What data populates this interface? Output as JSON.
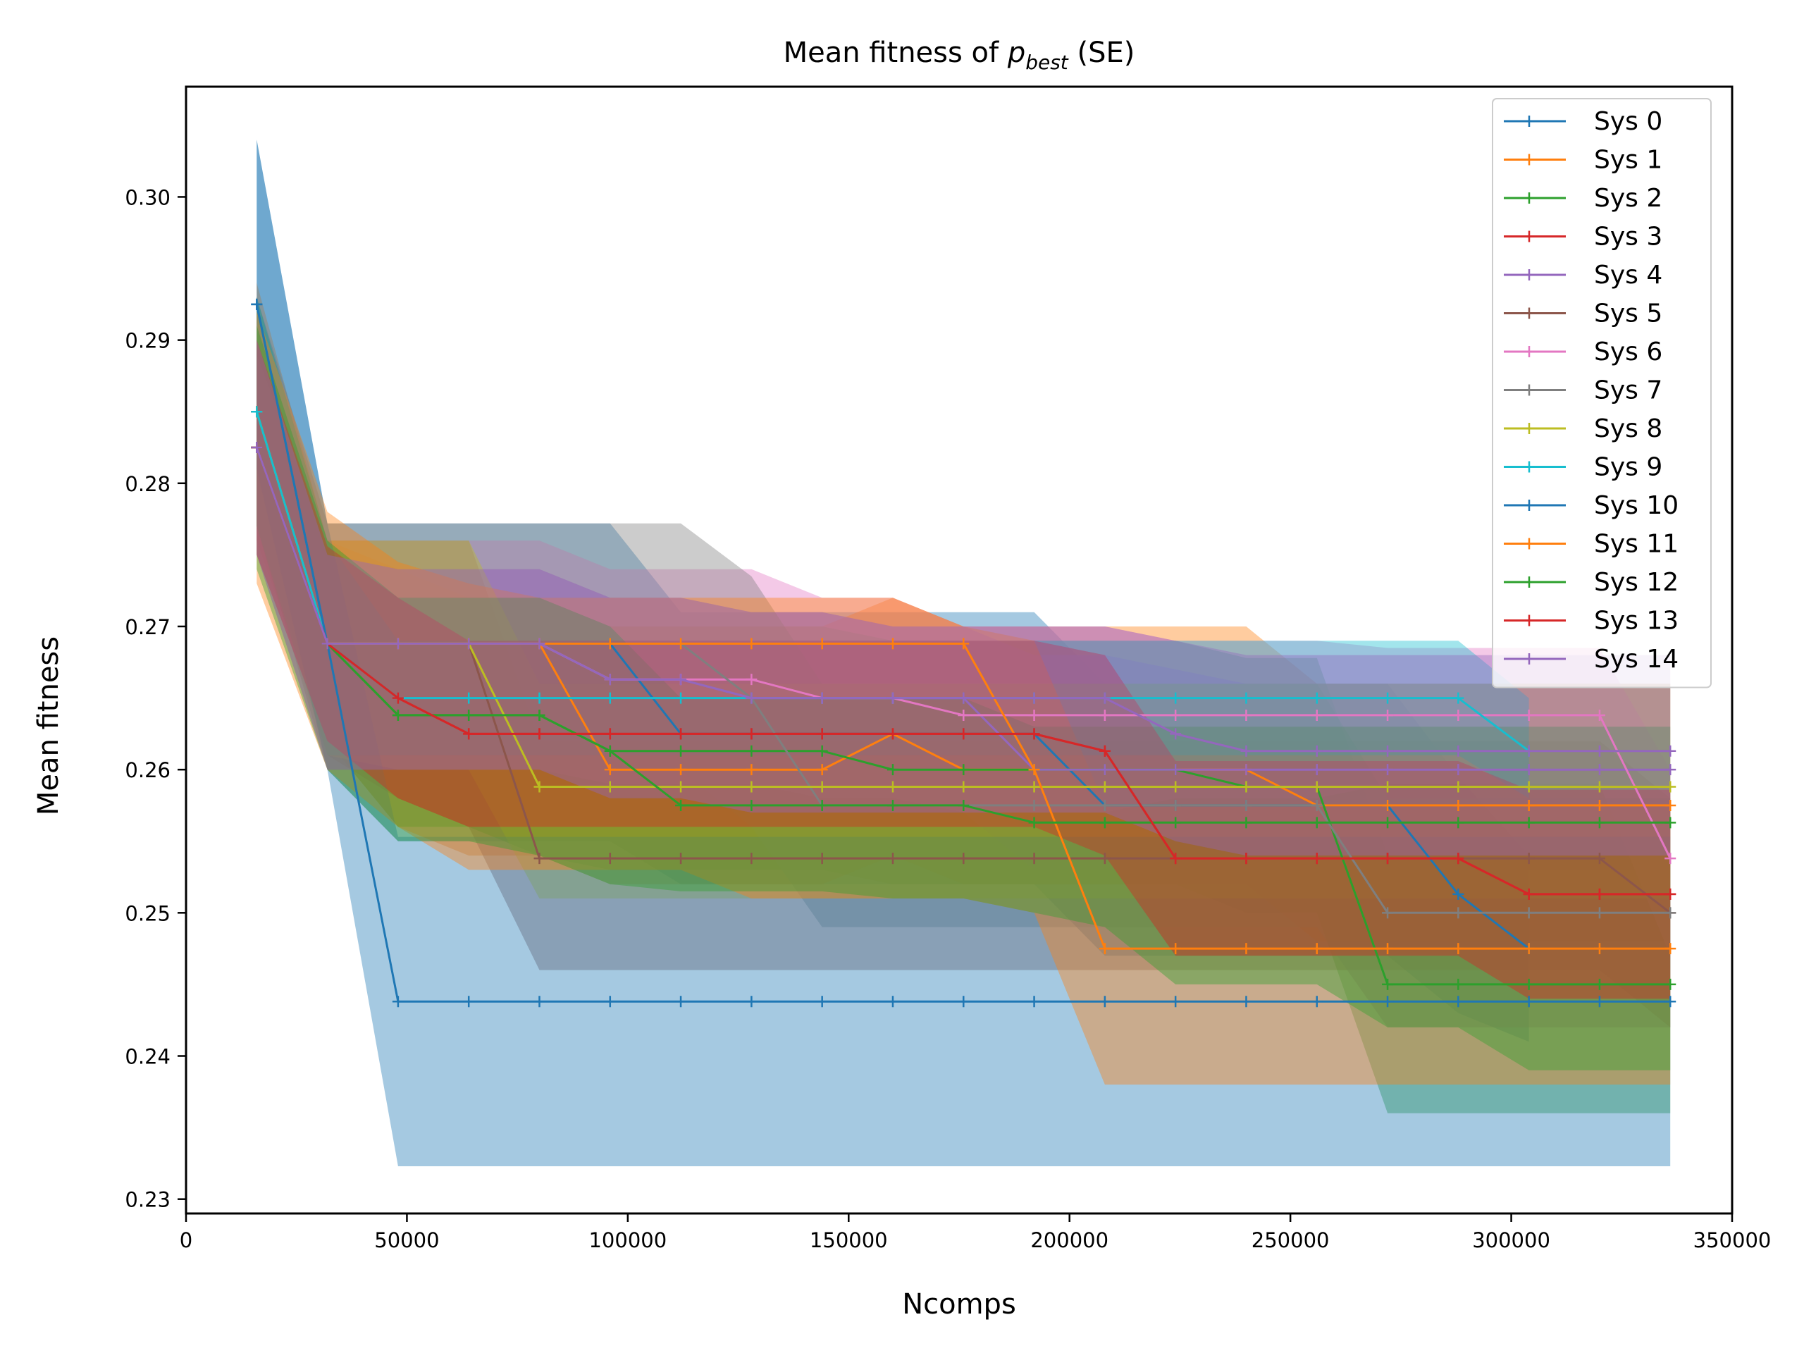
{
  "chart_data": {
    "type": "line",
    "title_main": "Mean fitness of ",
    "title_sym": "p",
    "title_sub": "best",
    "title_tail": " (SE)",
    "xlabel": "Ncomps",
    "ylabel": "Mean fitness",
    "xlim": [
      0,
      350000
    ],
    "ylim": [
      0.229,
      0.3077
    ],
    "x_ticks": [
      0,
      50000,
      100000,
      150000,
      200000,
      250000,
      300000,
      350000
    ],
    "x_tick_labels": [
      "0",
      "50000",
      "100000",
      "150000",
      "200000",
      "250000",
      "300000",
      "350000"
    ],
    "y_ticks": [
      0.23,
      0.24,
      0.25,
      0.26,
      0.27,
      0.28,
      0.29,
      0.3
    ],
    "y_tick_labels": [
      "0.23",
      "0.24",
      "0.25",
      "0.26",
      "0.27",
      "0.28",
      "0.29",
      "0.30"
    ],
    "grid": false,
    "legend_position": "top-right",
    "x": [
      16000,
      32000,
      48000,
      64000,
      80000,
      96000,
      112000,
      128000,
      144000,
      160000,
      176000,
      192000,
      208000,
      224000,
      240000,
      256000,
      272000,
      288000,
      304000,
      320000,
      336000
    ],
    "series": [
      {
        "name": "Sys 0",
        "color": "#1f77b4",
        "values": [
          0.2925,
          0.2688,
          0.2688,
          0.2688,
          0.2688,
          0.2688,
          0.2625,
          0.2625,
          0.2625,
          0.2625,
          0.2625,
          0.2625,
          0.2575,
          0.2575,
          0.2575,
          0.2575,
          0.2575,
          0.2513,
          0.2475,
          null,
          null
        ],
        "lower": [
          0.281,
          0.26,
          0.255,
          0.255,
          0.255,
          0.255,
          0.252,
          0.252,
          0.252,
          0.252,
          0.252,
          0.252,
          0.247,
          0.247,
          0.247,
          0.247,
          0.247,
          0.243,
          0.241,
          null,
          null
        ],
        "upper": [
          0.304,
          0.2772,
          0.2772,
          0.2772,
          0.2772,
          0.2772,
          0.271,
          0.271,
          0.271,
          0.271,
          0.271,
          0.271,
          0.266,
          0.266,
          0.266,
          0.266,
          0.266,
          0.2595,
          0.254,
          null,
          null
        ]
      },
      {
        "name": "Sys 1",
        "color": "#ff7f0e",
        "values": [
          0.285,
          0.2688,
          0.2688,
          0.2688,
          0.2688,
          0.26,
          0.26,
          0.26,
          0.26,
          0.2625,
          0.26,
          0.26,
          0.26,
          0.26,
          0.26,
          0.2575,
          0.2575,
          0.2575,
          0.2575,
          0.2575,
          0.2575
        ],
        "lower": [
          0.276,
          0.262,
          0.256,
          0.254,
          0.254,
          0.252,
          0.252,
          0.252,
          0.252,
          0.254,
          0.252,
          0.252,
          0.252,
          0.252,
          0.252,
          0.248,
          0.248,
          0.248,
          0.248,
          0.248,
          0.248
        ],
        "upper": [
          0.294,
          0.276,
          0.274,
          0.272,
          0.272,
          0.27,
          0.27,
          0.27,
          0.27,
          0.272,
          0.27,
          0.27,
          0.27,
          0.27,
          0.27,
          0.266,
          0.266,
          0.266,
          0.266,
          0.266,
          0.266
        ]
      },
      {
        "name": "Sys 2",
        "color": "#2ca02c",
        "values": [
          0.285,
          0.2688,
          0.2638,
          0.2638,
          0.2638,
          0.2613,
          0.2613,
          0.2613,
          0.2613,
          0.26,
          0.26,
          0.26,
          0.26,
          0.26,
          0.2588,
          0.2588,
          0.245,
          0.245,
          0.245,
          0.245,
          0.245
        ],
        "lower": [
          0.277,
          0.262,
          0.256,
          0.256,
          0.254,
          0.253,
          0.253,
          0.253,
          0.253,
          0.252,
          0.252,
          0.252,
          0.252,
          0.252,
          0.25,
          0.25,
          0.236,
          0.236,
          0.236,
          0.236,
          0.236
        ],
        "upper": [
          0.293,
          0.276,
          0.272,
          0.272,
          0.272,
          0.27,
          0.27,
          0.27,
          0.27,
          0.269,
          0.269,
          0.269,
          0.269,
          0.269,
          0.2678,
          0.2678,
          0.254,
          0.254,
          0.254,
          0.254,
          0.254
        ]
      },
      {
        "name": "Sys 3",
        "color": "#d62728",
        "values": [
          0.2825,
          0.2688,
          0.265,
          0.2625,
          0.2625,
          0.2625,
          0.2625,
          0.2625,
          0.2625,
          0.2625,
          0.2625,
          0.2625,
          0.2613,
          0.2538,
          0.2538,
          0.2538,
          0.2538,
          0.2538,
          0.2513,
          0.2513,
          0.2513
        ],
        "lower": [
          0.275,
          0.262,
          0.258,
          0.256,
          0.256,
          0.256,
          0.256,
          0.256,
          0.256,
          0.256,
          0.256,
          0.256,
          0.254,
          0.247,
          0.247,
          0.247,
          0.247,
          0.247,
          0.244,
          0.244,
          0.244
        ],
        "upper": [
          0.29,
          0.2756,
          0.272,
          0.269,
          0.269,
          0.269,
          0.269,
          0.269,
          0.269,
          0.269,
          0.269,
          0.269,
          0.268,
          0.2606,
          0.2606,
          0.2606,
          0.2606,
          0.2606,
          0.2586,
          0.2586,
          0.2586
        ]
      },
      {
        "name": "Sys 4",
        "color": "#9467bd",
        "values": [
          0.2825,
          0.2688,
          0.2688,
          0.2688,
          0.2688,
          0.2663,
          0.2663,
          0.265,
          0.265,
          0.265,
          0.265,
          0.26,
          0.26,
          0.26,
          0.26,
          0.26,
          0.26,
          0.26,
          0.26,
          0.26,
          0.26
        ],
        "lower": [
          0.275,
          0.26,
          0.26,
          0.26,
          0.26,
          0.258,
          0.258,
          0.257,
          0.257,
          0.257,
          0.257,
          0.253,
          0.253,
          0.253,
          0.253,
          0.253,
          0.253,
          0.253,
          0.253,
          0.253,
          0.253
        ],
        "upper": [
          0.29,
          0.275,
          0.274,
          0.274,
          0.274,
          0.272,
          0.272,
          0.271,
          0.271,
          0.27,
          0.27,
          0.268,
          0.268,
          0.267,
          0.266,
          0.266,
          0.266,
          0.266,
          0.266,
          0.266,
          0.266
        ]
      },
      {
        "name": "Sys 5",
        "color": "#8c564b",
        "values": [
          0.285,
          0.2688,
          0.2688,
          0.2688,
          0.2538,
          0.2538,
          0.2538,
          0.2538,
          0.2538,
          0.2538,
          0.2538,
          0.2538,
          0.2538,
          0.2538,
          0.2538,
          0.2538,
          0.2538,
          0.2538,
          0.2538,
          0.2538,
          0.25
        ],
        "lower": [
          0.277,
          0.261,
          0.258,
          0.256,
          0.246,
          0.246,
          0.246,
          0.246,
          0.246,
          0.246,
          0.246,
          0.246,
          0.246,
          0.246,
          0.246,
          0.246,
          0.246,
          0.246,
          0.246,
          0.246,
          0.242
        ],
        "upper": [
          0.293,
          0.276,
          0.276,
          0.276,
          0.262,
          0.262,
          0.262,
          0.262,
          0.262,
          0.262,
          0.262,
          0.262,
          0.262,
          0.262,
          0.262,
          0.262,
          0.262,
          0.262,
          0.262,
          0.262,
          0.258
        ]
      },
      {
        "name": "Sys 6",
        "color": "#e377c2",
        "values": [
          0.2825,
          0.2688,
          0.2688,
          0.2688,
          0.2688,
          0.2663,
          0.2663,
          0.2663,
          0.265,
          0.265,
          0.2638,
          0.2638,
          0.2638,
          0.2638,
          0.2638,
          0.2638,
          0.2638,
          0.2638,
          0.2638,
          0.2638,
          0.2538
        ],
        "lower": [
          0.276,
          0.261,
          0.26,
          0.26,
          0.26,
          0.259,
          0.259,
          0.259,
          0.258,
          0.258,
          0.257,
          0.257,
          0.257,
          0.258,
          0.258,
          0.258,
          0.259,
          0.259,
          0.259,
          0.259,
          0.247
        ],
        "upper": [
          0.289,
          0.276,
          0.276,
          0.276,
          0.276,
          0.274,
          0.274,
          0.274,
          0.272,
          0.272,
          0.27,
          0.27,
          0.27,
          0.269,
          0.269,
          0.269,
          0.2685,
          0.2685,
          0.2685,
          0.2685,
          0.26
        ]
      },
      {
        "name": "Sys 7",
        "color": "#7f7f7f",
        "values": [
          0.285,
          0.2688,
          0.2688,
          0.2688,
          0.2688,
          0.2688,
          0.2688,
          0.265,
          0.2575,
          0.2575,
          0.2575,
          0.2575,
          0.2575,
          0.2575,
          0.2575,
          0.2575,
          0.25,
          0.25,
          0.25,
          0.25,
          0.25
        ],
        "lower": [
          0.277,
          0.26,
          0.26,
          0.26,
          0.26,
          0.26,
          0.26,
          0.256,
          0.249,
          0.249,
          0.249,
          0.249,
          0.249,
          0.249,
          0.249,
          0.249,
          0.242,
          0.242,
          0.242,
          0.242,
          0.242
        ],
        "upper": [
          0.293,
          0.2772,
          0.2772,
          0.2772,
          0.2772,
          0.2772,
          0.2772,
          0.2735,
          0.266,
          0.266,
          0.266,
          0.266,
          0.266,
          0.266,
          0.266,
          0.266,
          0.258,
          0.258,
          0.258,
          0.258,
          0.258
        ]
      },
      {
        "name": "Sys 8",
        "color": "#bcbd22",
        "values": [
          0.285,
          0.2688,
          0.2688,
          0.2688,
          0.2588,
          0.2588,
          0.2588,
          0.2588,
          0.2588,
          0.2588,
          0.2588,
          0.2588,
          0.2588,
          0.2588,
          0.2588,
          0.2588,
          0.2588,
          0.2588,
          0.2588,
          0.2588,
          0.2588
        ],
        "lower": [
          0.277,
          0.261,
          0.26,
          0.26,
          0.251,
          0.251,
          0.251,
          0.251,
          0.251,
          0.251,
          0.251,
          0.251,
          0.251,
          0.251,
          0.251,
          0.251,
          0.251,
          0.251,
          0.251,
          0.251,
          0.251
        ],
        "upper": [
          0.293,
          0.276,
          0.276,
          0.276,
          0.266,
          0.266,
          0.266,
          0.266,
          0.266,
          0.266,
          0.266,
          0.266,
          0.266,
          0.266,
          0.266,
          0.266,
          0.266,
          0.266,
          0.266,
          0.266,
          0.266
        ]
      },
      {
        "name": "Sys 9",
        "color": "#17becf",
        "values": [
          0.285,
          0.2688,
          0.265,
          0.265,
          0.265,
          0.265,
          0.265,
          0.265,
          0.265,
          0.265,
          0.265,
          0.265,
          0.265,
          0.265,
          0.265,
          0.265,
          0.265,
          0.265,
          0.2613,
          null,
          null
        ],
        "lower": [
          0.277,
          0.261,
          0.261,
          0.261,
          0.261,
          0.261,
          0.261,
          0.261,
          0.261,
          0.261,
          0.261,
          0.261,
          0.261,
          0.261,
          0.261,
          0.261,
          0.261,
          0.261,
          0.258,
          null,
          null
        ],
        "upper": [
          0.293,
          0.276,
          0.269,
          0.269,
          0.269,
          0.269,
          0.269,
          0.269,
          0.269,
          0.269,
          0.269,
          0.269,
          0.269,
          0.269,
          0.269,
          0.269,
          0.269,
          0.269,
          0.265,
          null,
          null
        ]
      },
      {
        "name": "Sys 10",
        "color": "#1f77b4",
        "values": [
          0.2925,
          0.2688,
          0.2438,
          0.2438,
          0.2438,
          0.2438,
          0.2438,
          0.2438,
          0.2438,
          0.2438,
          0.2438,
          0.2438,
          0.2438,
          0.2438,
          0.2438,
          0.2438,
          0.2438,
          0.2438,
          0.2438,
          0.2438,
          0.2438
        ],
        "lower": [
          0.281,
          0.26,
          0.2323,
          0.2323,
          0.2323,
          0.2323,
          0.2323,
          0.2323,
          0.2323,
          0.2323,
          0.2323,
          0.2323,
          0.2323,
          0.2323,
          0.2323,
          0.2323,
          0.2323,
          0.2323,
          0.2323,
          0.2323,
          0.2323
        ],
        "upper": [
          0.304,
          0.2772,
          0.2553,
          0.2553,
          0.2553,
          0.2553,
          0.2553,
          0.2553,
          0.2553,
          0.2553,
          0.2553,
          0.2553,
          0.2553,
          0.2553,
          0.2553,
          0.2553,
          0.2553,
          0.2553,
          0.2553,
          0.2553,
          0.2553
        ]
      },
      {
        "name": "Sys 11",
        "color": "#ff7f0e",
        "values": [
          0.2825,
          0.2688,
          0.2688,
          0.2688,
          0.2688,
          0.2688,
          0.2688,
          0.2688,
          0.2688,
          0.2688,
          0.2688,
          0.26,
          0.2475,
          0.2475,
          0.2475,
          0.2475,
          0.2475,
          0.2475,
          0.2475,
          0.2475,
          0.2475
        ],
        "lower": [
          0.273,
          0.26,
          0.256,
          0.253,
          0.253,
          0.253,
          0.253,
          0.251,
          0.251,
          0.251,
          0.251,
          0.25,
          0.238,
          0.238,
          0.238,
          0.238,
          0.238,
          0.238,
          0.238,
          0.238,
          0.238
        ],
        "upper": [
          0.292,
          0.278,
          0.2745,
          0.273,
          0.272,
          0.272,
          0.272,
          0.272,
          0.272,
          0.272,
          0.27,
          0.269,
          0.2575,
          0.2575,
          0.2575,
          0.2575,
          0.2575,
          0.2575,
          0.2575,
          0.2575,
          0.2575
        ]
      },
      {
        "name": "Sys 12",
        "color": "#2ca02c",
        "values": [
          0.2825,
          0.2688,
          0.2638,
          0.2638,
          0.2638,
          0.2613,
          0.2575,
          0.2575,
          0.2575,
          0.2575,
          0.2575,
          0.2563,
          0.2563,
          0.2563,
          0.2563,
          0.2563,
          0.2563,
          0.2563,
          0.2563,
          0.2563,
          0.2563
        ],
        "lower": [
          0.274,
          0.26,
          0.255,
          0.255,
          0.254,
          0.252,
          0.2515,
          0.2515,
          0.2515,
          0.251,
          0.251,
          0.25,
          0.249,
          0.245,
          0.245,
          0.245,
          0.242,
          0.242,
          0.239,
          0.239,
          0.239
        ],
        "upper": [
          0.291,
          0.276,
          0.272,
          0.272,
          0.272,
          0.27,
          0.265,
          0.265,
          0.265,
          0.265,
          0.265,
          0.263,
          0.263,
          0.263,
          0.263,
          0.263,
          0.263,
          0.263,
          0.263,
          0.263,
          0.263
        ]
      },
      {
        "name": "Sys 13",
        "color": "#d62728",
        "values": [
          0.2825,
          0.2688,
          0.265,
          0.2625,
          0.2625,
          0.2625,
          0.2625,
          0.2625,
          0.2625,
          0.2625,
          0.2625,
          0.2625,
          0.2613,
          0.2538,
          0.2538,
          0.2538,
          0.2538,
          0.2538,
          0.2513,
          0.2513,
          0.2513
        ],
        "lower": [
          0.275,
          0.262,
          0.258,
          0.256,
          0.256,
          0.256,
          0.256,
          0.256,
          0.256,
          0.256,
          0.256,
          0.256,
          0.254,
          0.247,
          0.247,
          0.247,
          0.247,
          0.247,
          0.244,
          0.244,
          0.244
        ],
        "upper": [
          0.29,
          0.2756,
          0.272,
          0.269,
          0.269,
          0.269,
          0.269,
          0.269,
          0.269,
          0.269,
          0.269,
          0.269,
          0.268,
          0.2606,
          0.2606,
          0.2606,
          0.2606,
          0.2606,
          0.2586,
          0.2586,
          0.2586
        ]
      },
      {
        "name": "Sys 14",
        "color": "#9467bd",
        "values": [
          0.2825,
          0.2688,
          0.2688,
          0.2688,
          0.2688,
          0.2663,
          0.2663,
          0.265,
          0.265,
          0.265,
          0.265,
          0.265,
          0.265,
          0.2625,
          0.2613,
          0.2613,
          0.2613,
          0.2613,
          0.2613,
          0.2613,
          0.2613
        ],
        "lower": [
          0.275,
          0.26,
          0.26,
          0.26,
          0.26,
          0.258,
          0.258,
          0.257,
          0.257,
          0.257,
          0.257,
          0.257,
          0.257,
          0.255,
          0.254,
          0.254,
          0.254,
          0.254,
          0.254,
          0.254,
          0.254
        ],
        "upper": [
          0.29,
          0.275,
          0.274,
          0.274,
          0.274,
          0.272,
          0.272,
          0.271,
          0.271,
          0.27,
          0.27,
          0.27,
          0.27,
          0.269,
          0.268,
          0.268,
          0.268,
          0.268,
          0.268,
          0.268,
          0.268
        ]
      }
    ]
  }
}
